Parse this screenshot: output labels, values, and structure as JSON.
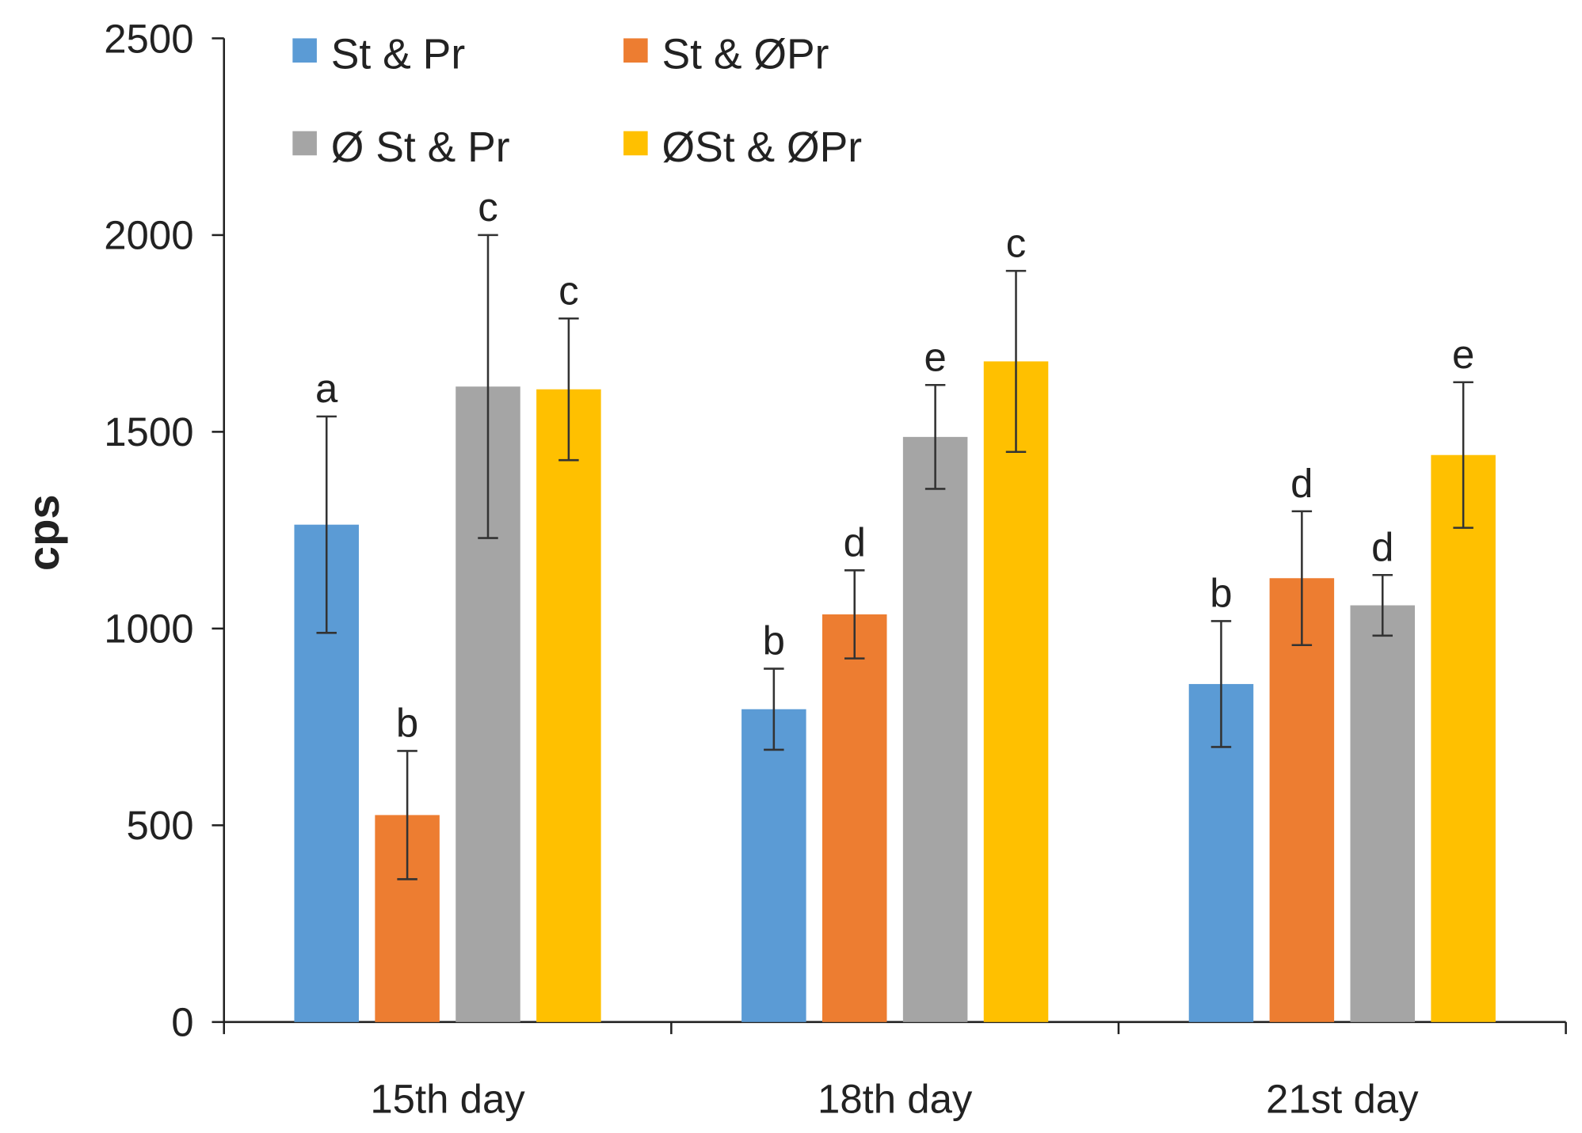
{
  "chart_data": {
    "type": "bar",
    "title": "",
    "xlabel": "",
    "ylabel": "cps",
    "ylim": [
      0,
      2500
    ],
    "yticks": [
      "0",
      "500",
      "1000",
      "1500",
      "2000",
      "2500"
    ],
    "ytick_values": [
      0,
      500,
      1000,
      1500,
      2000,
      2500
    ],
    "categories": [
      "15th day",
      "18th day",
      "21st day"
    ],
    "legend_position": "top-left",
    "series": [
      {
        "name": "St & Pr",
        "color": "#5b9bd5",
        "values": [
          1264,
          795,
          859
        ],
        "errors": [
          275,
          103,
          160
        ],
        "letters": [
          "a",
          "b",
          "b"
        ]
      },
      {
        "name": "St & ØPr",
        "color": "#ed7d31",
        "values": [
          526,
          1036,
          1128
        ],
        "errors": [
          163,
          112,
          170
        ],
        "letters": [
          "b",
          "d",
          "d"
        ]
      },
      {
        "name": "Ø St & Pr",
        "color": "#a5a5a5",
        "values": [
          1615,
          1487,
          1059
        ],
        "errors": [
          385,
          132,
          77
        ],
        "letters": [
          "c",
          "e",
          "d"
        ]
      },
      {
        "name": "ØSt & ØPr",
        "color": "#ffc000",
        "values": [
          1608,
          1679,
          1441
        ],
        "errors": [
          180,
          230,
          185
        ],
        "letters": [
          "c",
          "c",
          "e"
        ]
      }
    ]
  }
}
